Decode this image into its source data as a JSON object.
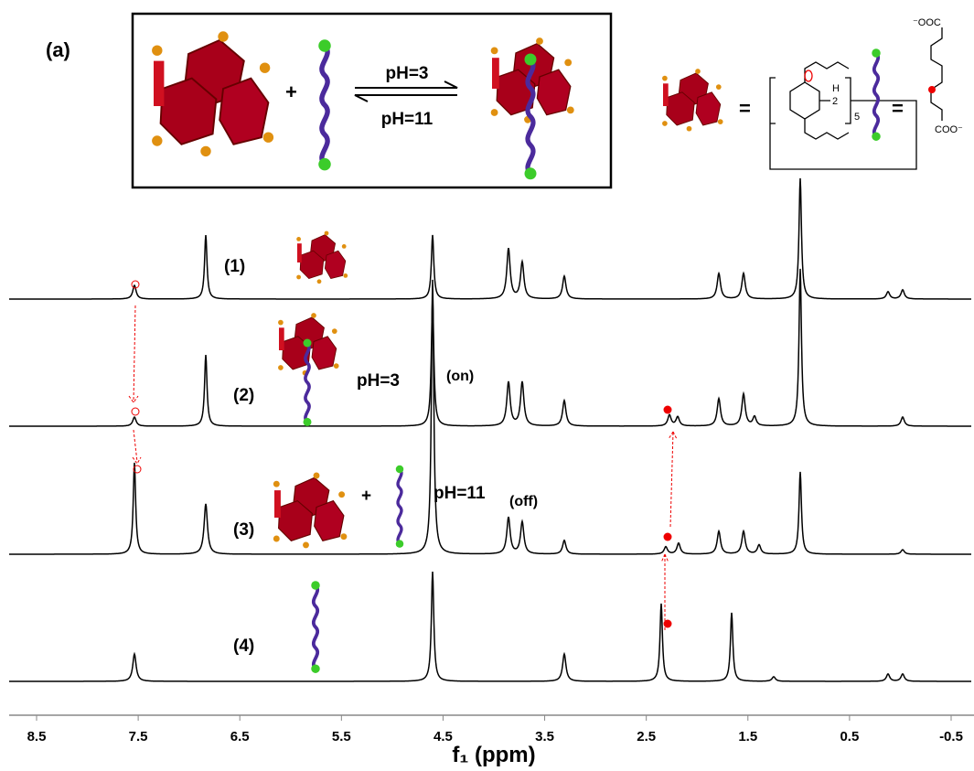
{
  "panel_label": "(a)",
  "scheme": {
    "plus": "+",
    "forward": "pH=3",
    "backward": "pH=11",
    "equals_1": "=",
    "equals_2": "=",
    "structure_labels": [
      "H",
      "2",
      "5",
      "⁻OOC",
      "COO⁻"
    ]
  },
  "spectra": [
    {
      "label": "(1)"
    },
    {
      "label": "(2)",
      "annotations": [
        "pH=3",
        "(on)"
      ]
    },
    {
      "label": "(3)",
      "annotations": [
        "+",
        "pH=11",
        "(off)"
      ]
    },
    {
      "label": "(4)"
    }
  ],
  "axis": {
    "ticks": [
      8.5,
      7.5,
      6.5,
      5.5,
      4.5,
      3.5,
      2.5,
      1.5,
      0.5,
      -0.5
    ],
    "label": "f₁ (ppm)"
  }
}
